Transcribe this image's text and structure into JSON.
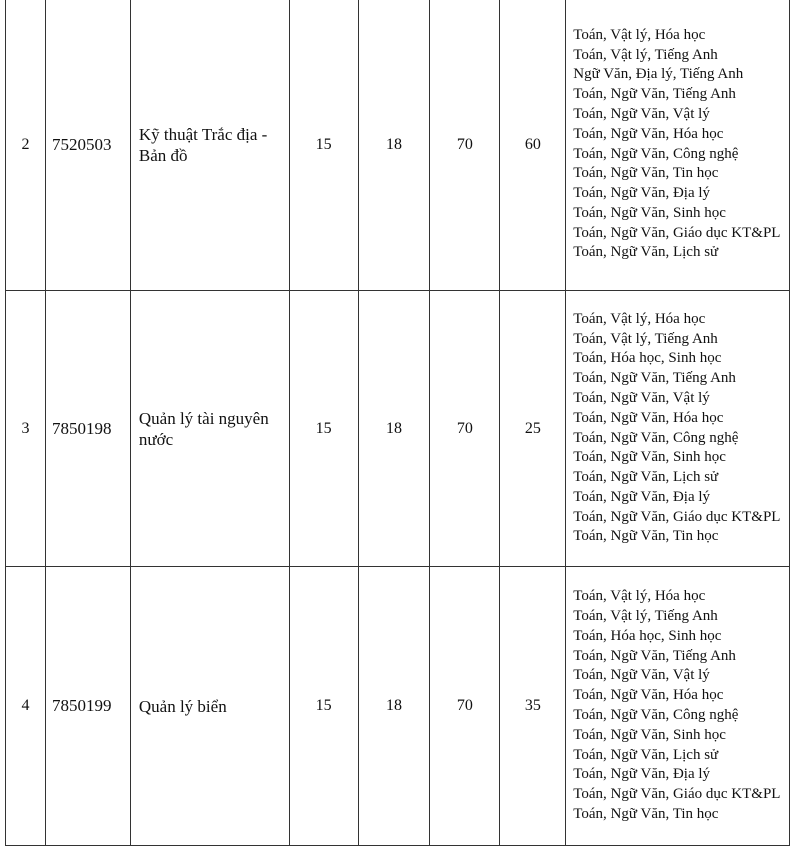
{
  "rows": [
    {
      "stt": "2",
      "code": "7520503",
      "name": "Kỹ thuật Trắc địa - Bản đồ",
      "a": "15",
      "b": "18",
      "c": "70",
      "d": "60",
      "subjects": [
        "Toán, Vật lý, Hóa học",
        "Toán, Vật lý, Tiếng Anh",
        "Ngữ Văn, Địa lý, Tiếng Anh",
        "Toán, Ngữ Văn, Tiếng Anh",
        "Toán, Ngữ Văn, Vật lý",
        "Toán, Ngữ Văn, Hóa học",
        "Toán, Ngữ Văn, Công nghệ",
        "Toán, Ngữ Văn, Tin học",
        "Toán, Ngữ Văn, Địa lý",
        "Toán, Ngữ Văn, Sinh học",
        "Toán, Ngữ Văn, Giáo dục KT&PL",
        "Toán, Ngữ Văn, Lịch sử"
      ]
    },
    {
      "stt": "3",
      "code": "7850198",
      "name": "Quản lý tài nguyên nước",
      "a": "15",
      "b": "18",
      "c": "70",
      "d": "25",
      "subjects": [
        "Toán, Vật lý, Hóa học",
        "Toán, Vật lý, Tiếng Anh",
        "Toán, Hóa học, Sinh học",
        "Toán, Ngữ Văn, Tiếng Anh",
        "Toán, Ngữ Văn, Vật lý",
        "Toán, Ngữ Văn, Hóa học",
        "Toán, Ngữ Văn, Công nghệ",
        "Toán, Ngữ Văn, Sinh học",
        "Toán, Ngữ Văn, Lịch sử",
        "Toán, Ngữ Văn, Địa lý",
        "Toán, Ngữ Văn, Giáo dục KT&PL",
        "Toán, Ngữ Văn, Tin học"
      ]
    },
    {
      "stt": "4",
      "code": "7850199",
      "name": "Quản lý biển",
      "a": "15",
      "b": "18",
      "c": "70",
      "d": "35",
      "subjects": [
        "Toán, Vật lý, Hóa học",
        "Toán, Vật lý, Tiếng Anh",
        "Toán, Hóa học, Sinh học",
        "Toán, Ngữ Văn, Tiếng Anh",
        "Toán, Ngữ Văn, Vật lý",
        "Toán, Ngữ Văn, Hóa học",
        "Toán, Ngữ Văn, Công nghệ",
        "Toán, Ngữ Văn, Sinh học",
        "Toán, Ngữ Văn, Lịch sử",
        "Toán, Ngữ Văn, Địa lý",
        "Toán, Ngữ Văn, Giáo dục KT&PL",
        "Toán, Ngữ Văn, Tin học"
      ]
    }
  ]
}
